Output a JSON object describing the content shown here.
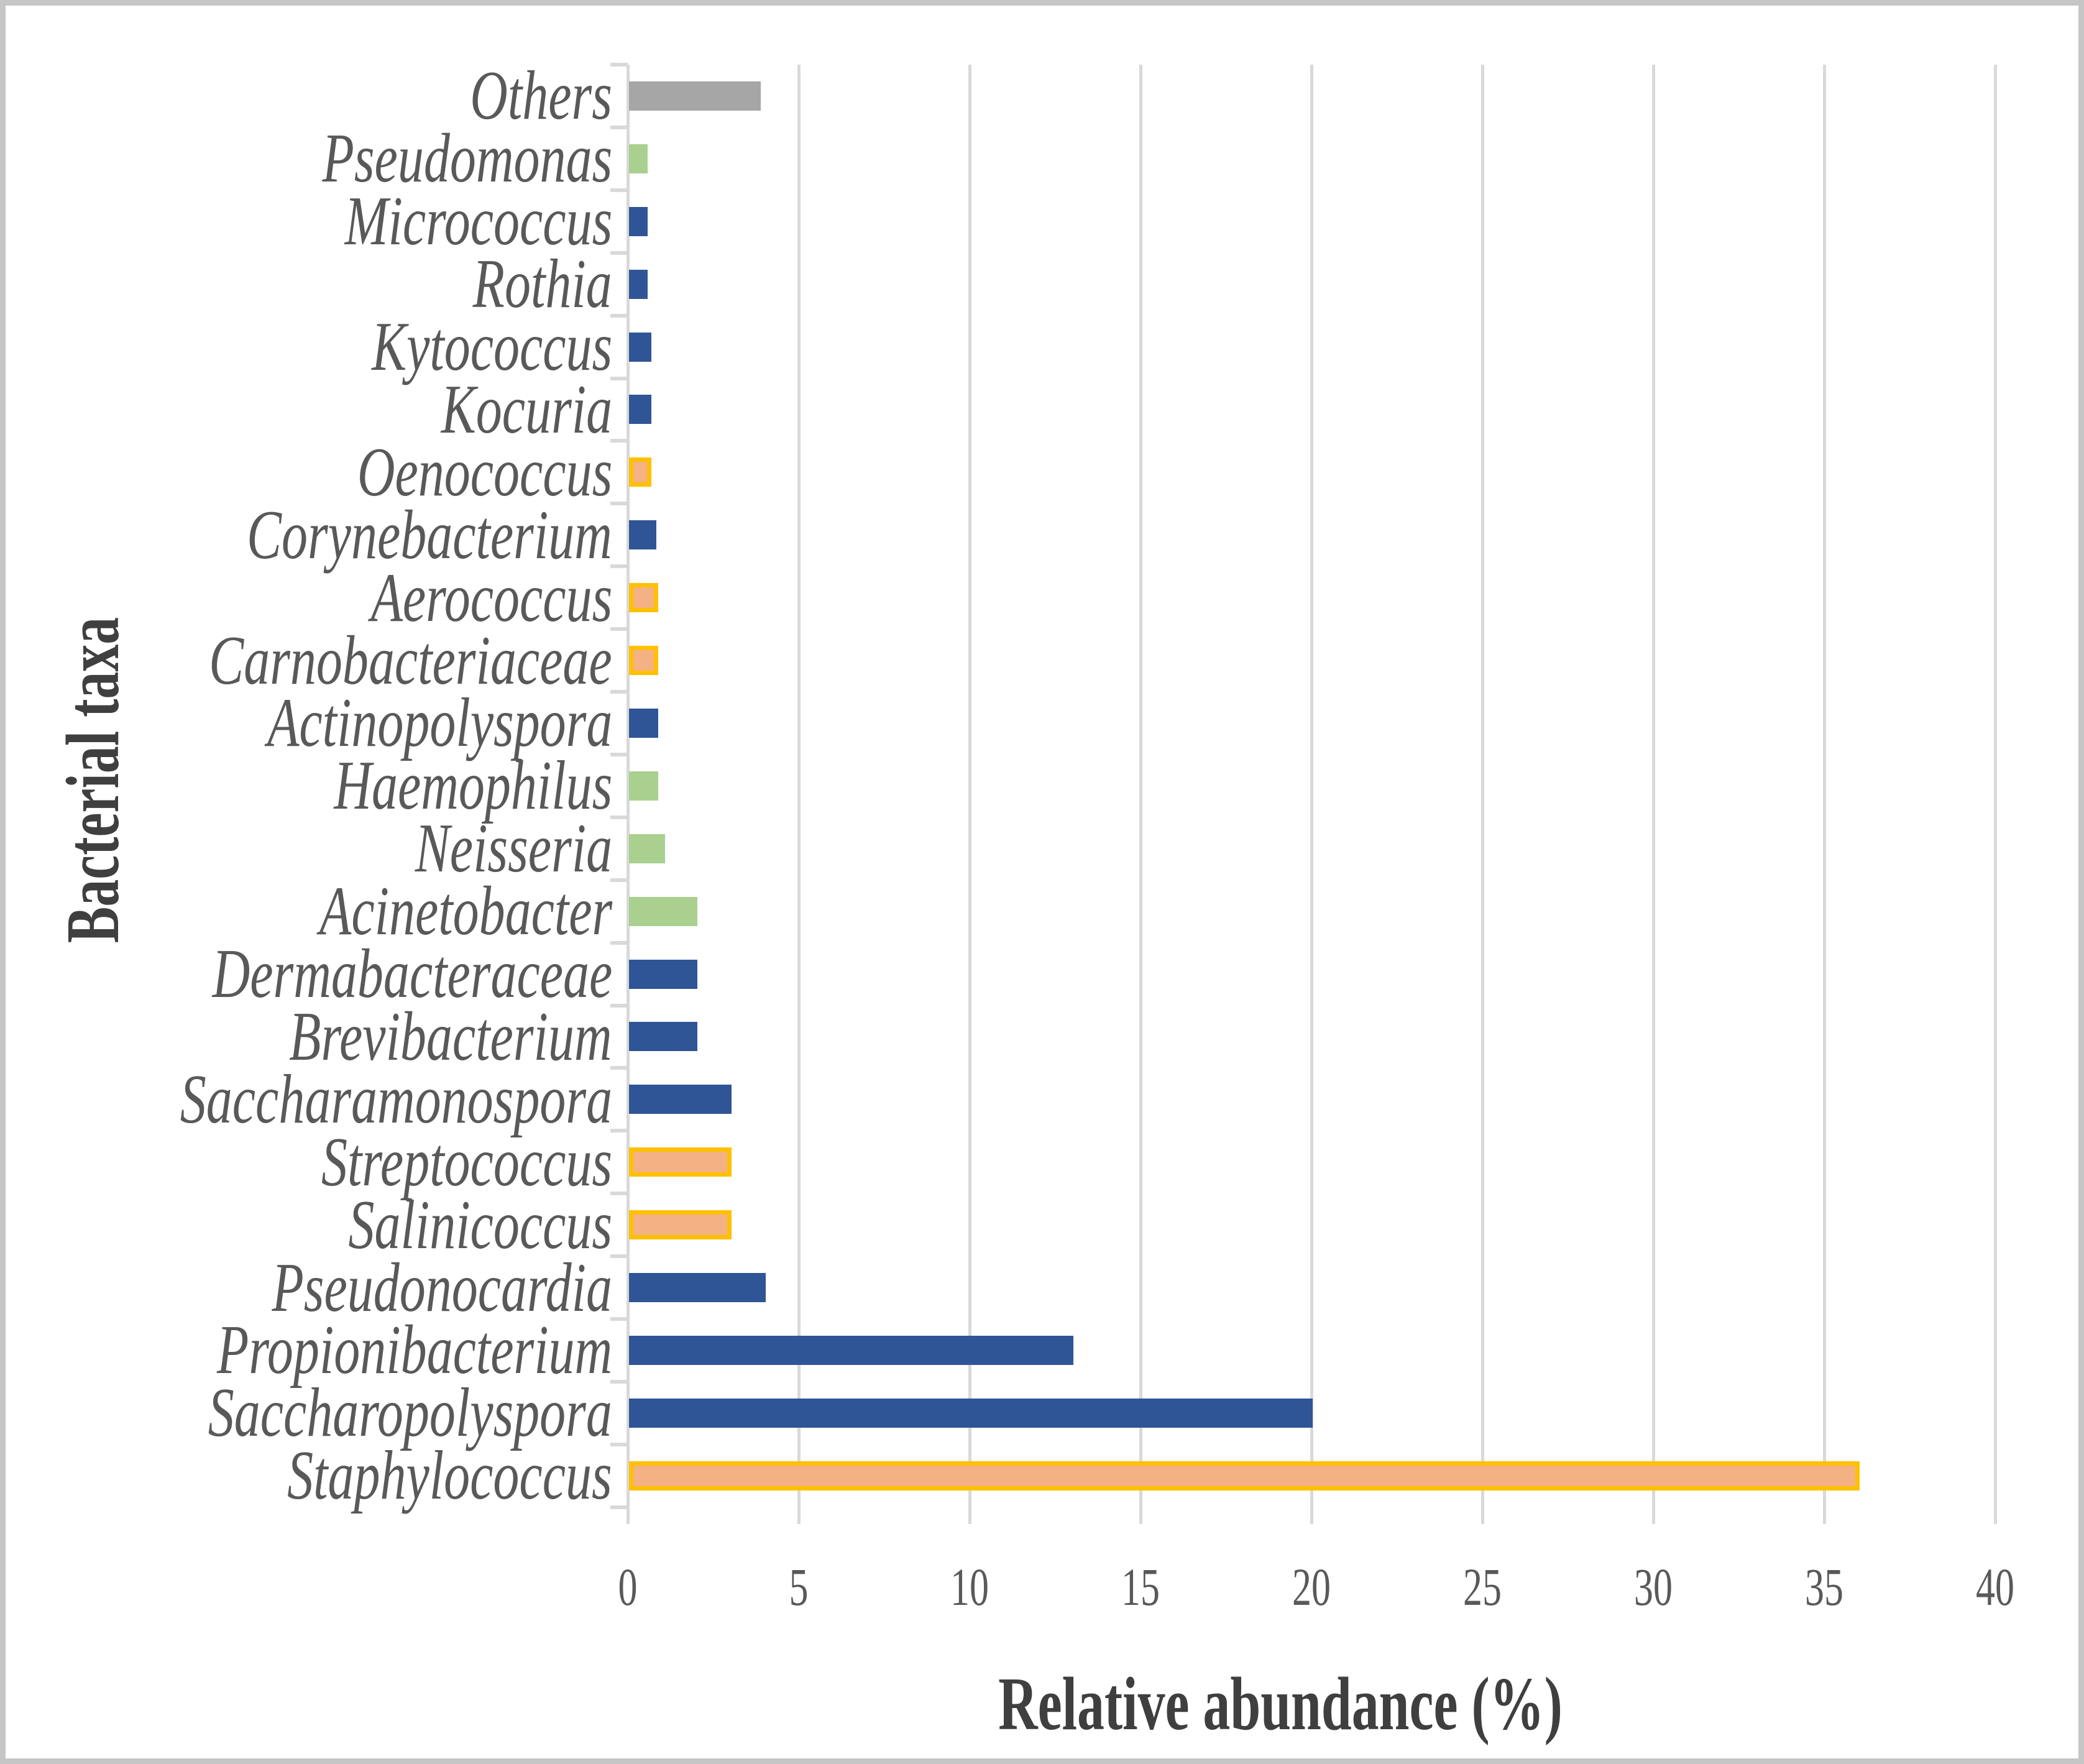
{
  "chart_data": {
    "type": "bar",
    "orientation": "horizontal",
    "title": "",
    "xlabel": "Relative abundance (%)",
    "ylabel": "Bacterial taxa",
    "xlim": [
      0,
      40
    ],
    "x_ticks": [
      0,
      5,
      10,
      15,
      20,
      25,
      30,
      35,
      40
    ],
    "grid": "vertical-gridlines-on",
    "legend": "none",
    "categories_top_to_bottom": [
      "Others",
      "Pseudomonas",
      "Micrococcus",
      "Rothia",
      "Kytococcus",
      "Kocuria",
      "Oenococcus",
      "Corynebacterium",
      "Aerococcus",
      "Carnobacteriaceae",
      "Actinopolyspora",
      "Haemophilus",
      "Neisseria",
      "Acinetobacter",
      "Dermabacteraceae",
      "Brevibacterium",
      "Saccharamonospora",
      "Streptococcus",
      "Salinicoccus",
      "Pseudonocardia",
      "Propionibacterium",
      "Saccharopolyspora",
      "Staphylococcus"
    ],
    "values": [
      3.85,
      0.55,
      0.55,
      0.55,
      0.65,
      0.65,
      0.65,
      0.8,
      0.85,
      0.85,
      0.85,
      0.85,
      1.05,
      2,
      2,
      2,
      3,
      3,
      3,
      4,
      13,
      20,
      36
    ],
    "bar_fills": [
      "#a6a6a6",
      "#a9d08e",
      "#2f5596",
      "#2f5596",
      "#2f5596",
      "#2f5596",
      "#f4b183",
      "#2f5596",
      "#f4b183",
      "#f4b183",
      "#2f5596",
      "#a9d08e",
      "#a9d08e",
      "#a9d08e",
      "#2f5596",
      "#2f5596",
      "#2f5596",
      "#f4b183",
      "#f4b183",
      "#2f5596",
      "#2f5596",
      "#2f5596",
      "#f4b183"
    ],
    "bar_borders": [
      null,
      null,
      null,
      null,
      null,
      null,
      "#ffc000",
      null,
      "#ffc000",
      "#ffc000",
      null,
      null,
      null,
      null,
      null,
      null,
      null,
      "#ffc000",
      "#ffc000",
      null,
      null,
      null,
      "#ffc000"
    ]
  },
  "colors": {
    "blue": "#2f5596",
    "green": "#a9d08e",
    "gray": "#a6a6a6",
    "orange_fill": "#f4b183",
    "orange_border": "#ffc000",
    "gridline": "#d9d9d9",
    "tick_text": "#595959",
    "axis_title_text": "#3f3f3f",
    "figure_border": "#c6c6c6"
  }
}
